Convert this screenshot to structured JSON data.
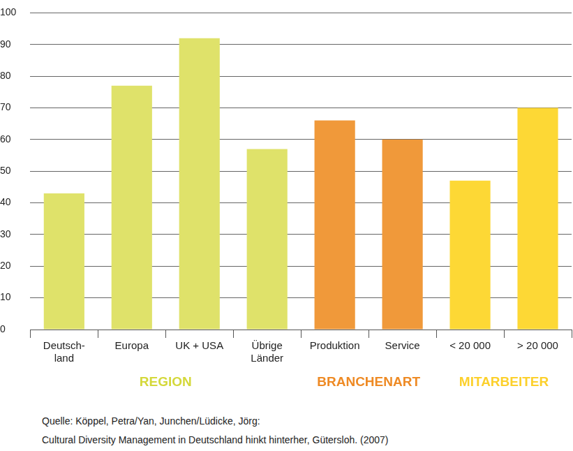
{
  "chart_data": {
    "type": "bar",
    "categories": [
      [
        "Deutsch-",
        "land"
      ],
      "Europa",
      "UK + USA",
      [
        "Übrige",
        "Länder"
      ],
      "Produktion",
      "Service",
      "< 20 000",
      "> 20 000"
    ],
    "values": [
      43,
      77,
      92,
      57,
      66,
      60,
      47,
      70
    ],
    "colors": [
      "#dfe26a",
      "#dfe26a",
      "#dfe26a",
      "#dfe26a",
      "#f0993a",
      "#f0993a",
      "#fdd835",
      "#fdd835"
    ],
    "groups": [
      {
        "label": "REGION",
        "size": 4,
        "color": "#d4d83a"
      },
      {
        "label": "BRANCHENART",
        "size": 2,
        "color": "#ee8a24"
      },
      {
        "label": "MITARBEITER",
        "size": 2,
        "color": "#fcd02c"
      }
    ],
    "ylim": [
      0,
      100
    ],
    "yticks": [
      0,
      10,
      20,
      30,
      40,
      50,
      60,
      70,
      80,
      90,
      100
    ],
    "grid": true,
    "source": [
      "Quelle: Köppel, Petra/Yan, Junchen/Lüdicke, Jörg:",
      "Cultural Diversity Management in Deutschland hinkt hinterher, Gütersloh. (2007)"
    ]
  }
}
